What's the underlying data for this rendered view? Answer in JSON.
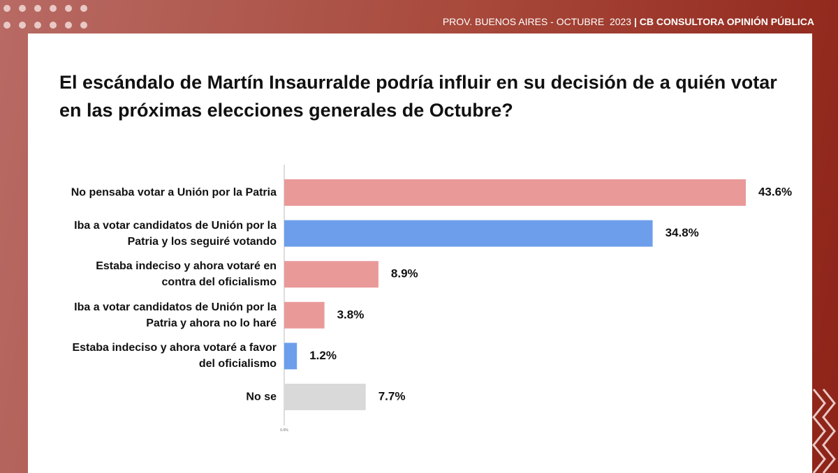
{
  "header": {
    "left": "PROV. BUENOS AIRES - OCTUBRE  2023",
    "separator": "|",
    "right": "CB CONSULTORA OPINIÓN PÚBLICA"
  },
  "chart_data": {
    "type": "bar",
    "orientation": "horizontal",
    "title": "El escándalo de Martín Insaurralde podría influir en su decisión de a quién votar en las próximas elecciones generales de Octubre?",
    "categories": [
      "No pensaba votar a Unión por la Patria",
      "Iba a votar candidatos de Unión por la Patria y los seguiré votando",
      "Estaba indeciso y ahora votaré en contra del oficialismo",
      "Iba a votar candidatos de Unión por la Patria y ahora no lo haré",
      "Estaba indeciso y ahora votaré a favor del oficialismo",
      "No se"
    ],
    "values": [
      43.6,
      34.8,
      8.9,
      3.8,
      1.2,
      7.7
    ],
    "value_labels": [
      "43.6%",
      "34.8%",
      "8.9%",
      "3.8%",
      "1.2%",
      "7.7%"
    ],
    "colors": [
      "#ea9999",
      "#6d9eeb",
      "#ea9999",
      "#ea9999",
      "#6d9eeb",
      "#d9d9d9"
    ],
    "xlim": [
      0,
      50
    ],
    "xticks": [
      {
        "value": 0,
        "label": "0.0%"
      }
    ]
  }
}
